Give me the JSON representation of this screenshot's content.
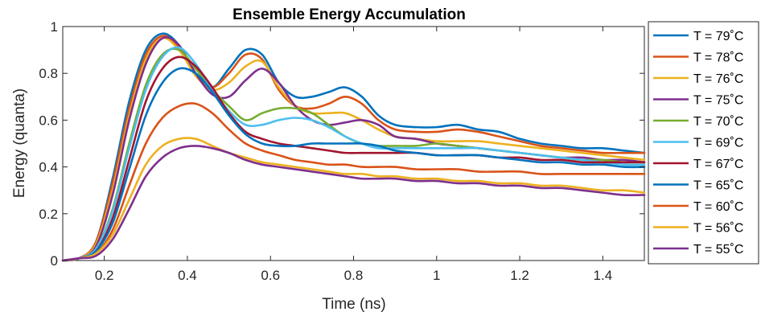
{
  "chart_data": {
    "type": "line",
    "title": "Ensemble Energy Accumulation",
    "xlabel": "Time (ns)",
    "ylabel": "Energy (quanta)",
    "xlim": [
      0.1,
      1.5
    ],
    "ylim": [
      0,
      1
    ],
    "xticks": [
      0.2,
      0.4,
      0.6,
      0.8,
      1,
      1.2,
      1.4
    ],
    "xtick_labels": [
      "0.2",
      "0.4",
      "0.6",
      "0.8",
      "1",
      "1.2",
      "1.4"
    ],
    "yticks": [
      0,
      0.2,
      0.4,
      0.6,
      0.8,
      1
    ],
    "ytick_labels": [
      "0",
      "0.2",
      "0.4",
      "0.6",
      "0.8",
      "1"
    ],
    "legend_placement": "outside-right",
    "grid": false,
    "series": [
      {
        "name": "T = 79˚C",
        "color": "#0072BD",
        "x": [
          0.1,
          0.14,
          0.18,
          0.22,
          0.26,
          0.3,
          0.34,
          0.38,
          0.42,
          0.46,
          0.5,
          0.54,
          0.58,
          0.62,
          0.66,
          0.7,
          0.74,
          0.78,
          0.82,
          0.86,
          0.9,
          0.95,
          1,
          1.05,
          1.1,
          1.15,
          1.2,
          1.25,
          1.3,
          1.35,
          1.4,
          1.45,
          1.5
        ],
        "y": [
          0,
          0.01,
          0.08,
          0.35,
          0.68,
          0.9,
          0.97,
          0.92,
          0.8,
          0.74,
          0.82,
          0.9,
          0.88,
          0.76,
          0.7,
          0.7,
          0.72,
          0.74,
          0.7,
          0.62,
          0.58,
          0.57,
          0.57,
          0.58,
          0.56,
          0.55,
          0.52,
          0.5,
          0.49,
          0.48,
          0.48,
          0.47,
          0.46
        ]
      },
      {
        "name": "T = 78˚C",
        "color": "#D95319",
        "x": [
          0.1,
          0.14,
          0.18,
          0.22,
          0.26,
          0.3,
          0.34,
          0.38,
          0.42,
          0.46,
          0.5,
          0.54,
          0.58,
          0.62,
          0.66,
          0.7,
          0.74,
          0.78,
          0.82,
          0.86,
          0.9,
          0.95,
          1,
          1.05,
          1.1,
          1.15,
          1.2,
          1.25,
          1.3,
          1.35,
          1.4,
          1.45,
          1.5
        ],
        "y": [
          0,
          0.01,
          0.08,
          0.33,
          0.65,
          0.88,
          0.96,
          0.91,
          0.79,
          0.74,
          0.8,
          0.88,
          0.86,
          0.73,
          0.66,
          0.65,
          0.67,
          0.7,
          0.67,
          0.6,
          0.56,
          0.55,
          0.55,
          0.56,
          0.55,
          0.53,
          0.51,
          0.49,
          0.48,
          0.47,
          0.46,
          0.46,
          0.46
        ]
      },
      {
        "name": "T = 76˚C",
        "color": "#EDB120",
        "x": [
          0.1,
          0.14,
          0.18,
          0.22,
          0.26,
          0.3,
          0.34,
          0.38,
          0.42,
          0.46,
          0.5,
          0.54,
          0.58,
          0.62,
          0.66,
          0.7,
          0.74,
          0.78,
          0.82,
          0.86,
          0.9,
          0.95,
          1,
          1.05,
          1.1,
          1.15,
          1.2,
          1.25,
          1.3,
          1.35,
          1.4,
          1.45,
          1.5
        ],
        "y": [
          0,
          0.01,
          0.07,
          0.3,
          0.62,
          0.86,
          0.95,
          0.9,
          0.79,
          0.73,
          0.76,
          0.83,
          0.85,
          0.74,
          0.66,
          0.63,
          0.63,
          0.63,
          0.6,
          0.56,
          0.53,
          0.52,
          0.51,
          0.51,
          0.51,
          0.5,
          0.49,
          0.48,
          0.47,
          0.46,
          0.45,
          0.44,
          0.43
        ]
      },
      {
        "name": "T = 75˚C",
        "color": "#7E2F8E",
        "x": [
          0.1,
          0.14,
          0.18,
          0.22,
          0.26,
          0.3,
          0.34,
          0.38,
          0.42,
          0.46,
          0.5,
          0.54,
          0.58,
          0.62,
          0.66,
          0.7,
          0.74,
          0.78,
          0.82,
          0.86,
          0.9,
          0.95,
          1,
          1.05,
          1.1,
          1.15,
          1.2,
          1.25,
          1.3,
          1.35,
          1.4,
          1.45,
          1.5
        ],
        "y": [
          0,
          0.01,
          0.06,
          0.28,
          0.6,
          0.84,
          0.95,
          0.92,
          0.8,
          0.71,
          0.7,
          0.77,
          0.82,
          0.76,
          0.66,
          0.6,
          0.58,
          0.59,
          0.6,
          0.58,
          0.53,
          0.52,
          0.5,
          0.49,
          0.48,
          0.47,
          0.46,
          0.45,
          0.44,
          0.44,
          0.43,
          0.43,
          0.42
        ]
      },
      {
        "name": "T = 70˚C",
        "color": "#77AC30",
        "x": [
          0.1,
          0.14,
          0.18,
          0.22,
          0.26,
          0.3,
          0.34,
          0.38,
          0.42,
          0.46,
          0.5,
          0.54,
          0.58,
          0.62,
          0.66,
          0.7,
          0.74,
          0.78,
          0.82,
          0.86,
          0.9,
          0.95,
          1,
          1.05,
          1.1,
          1.15,
          1.2,
          1.25,
          1.3,
          1.35,
          1.4,
          1.45,
          1.5
        ],
        "y": [
          0,
          0.01,
          0.05,
          0.22,
          0.5,
          0.75,
          0.88,
          0.9,
          0.82,
          0.73,
          0.66,
          0.6,
          0.63,
          0.65,
          0.65,
          0.63,
          0.58,
          0.53,
          0.5,
          0.49,
          0.49,
          0.49,
          0.5,
          0.49,
          0.48,
          0.47,
          0.46,
          0.45,
          0.44,
          0.43,
          0.43,
          0.42,
          0.42
        ]
      },
      {
        "name": "T = 69˚C",
        "color": "#4DBEEE",
        "x": [
          0.1,
          0.14,
          0.18,
          0.22,
          0.26,
          0.3,
          0.34,
          0.38,
          0.42,
          0.46,
          0.5,
          0.54,
          0.58,
          0.62,
          0.66,
          0.7,
          0.74,
          0.78,
          0.82,
          0.86,
          0.9,
          0.95,
          1,
          1.05,
          1.1,
          1.15,
          1.2,
          1.25,
          1.3,
          1.35,
          1.4,
          1.45,
          1.5
        ],
        "y": [
          0,
          0.01,
          0.05,
          0.21,
          0.48,
          0.73,
          0.87,
          0.91,
          0.84,
          0.73,
          0.64,
          0.58,
          0.58,
          0.6,
          0.61,
          0.6,
          0.57,
          0.53,
          0.5,
          0.48,
          0.48,
          0.48,
          0.48,
          0.48,
          0.48,
          0.47,
          0.46,
          0.45,
          0.44,
          0.43,
          0.42,
          0.41,
          0.41
        ]
      },
      {
        "name": "T = 67˚C",
        "color": "#A2142F",
        "x": [
          0.1,
          0.14,
          0.18,
          0.22,
          0.26,
          0.3,
          0.34,
          0.38,
          0.42,
          0.46,
          0.5,
          0.54,
          0.58,
          0.62,
          0.66,
          0.7,
          0.74,
          0.78,
          0.82,
          0.86,
          0.9,
          0.95,
          1,
          1.05,
          1.1,
          1.15,
          1.2,
          1.25,
          1.3,
          1.35,
          1.4,
          1.45,
          1.5
        ],
        "y": [
          0,
          0.01,
          0.04,
          0.18,
          0.43,
          0.68,
          0.82,
          0.87,
          0.83,
          0.74,
          0.63,
          0.55,
          0.52,
          0.5,
          0.49,
          0.48,
          0.47,
          0.46,
          0.46,
          0.46,
          0.46,
          0.46,
          0.45,
          0.45,
          0.45,
          0.44,
          0.44,
          0.43,
          0.43,
          0.42,
          0.42,
          0.42,
          0.42
        ]
      },
      {
        "name": "T = 65˚C",
        "color": "#0072BD",
        "x": [
          0.1,
          0.14,
          0.18,
          0.22,
          0.26,
          0.3,
          0.34,
          0.38,
          0.42,
          0.46,
          0.5,
          0.54,
          0.58,
          0.62,
          0.66,
          0.7,
          0.74,
          0.78,
          0.82,
          0.86,
          0.9,
          0.95,
          1,
          1.05,
          1.1,
          1.15,
          1.2,
          1.25,
          1.3,
          1.35,
          1.4,
          1.45,
          1.5
        ],
        "y": [
          0,
          0.01,
          0.04,
          0.16,
          0.39,
          0.62,
          0.76,
          0.82,
          0.8,
          0.72,
          0.62,
          0.54,
          0.5,
          0.49,
          0.49,
          0.5,
          0.5,
          0.5,
          0.5,
          0.49,
          0.47,
          0.46,
          0.45,
          0.45,
          0.45,
          0.44,
          0.43,
          0.42,
          0.42,
          0.41,
          0.41,
          0.4,
          0.4
        ]
      },
      {
        "name": "T = 60˚C",
        "color": "#D95319",
        "x": [
          0.1,
          0.14,
          0.18,
          0.22,
          0.26,
          0.3,
          0.34,
          0.38,
          0.42,
          0.46,
          0.5,
          0.54,
          0.58,
          0.62,
          0.66,
          0.7,
          0.74,
          0.78,
          0.82,
          0.86,
          0.9,
          0.95,
          1,
          1.05,
          1.1,
          1.15,
          1.2,
          1.25,
          1.3,
          1.35,
          1.4,
          1.45,
          1.5
        ],
        "y": [
          0,
          0.01,
          0.03,
          0.13,
          0.32,
          0.5,
          0.61,
          0.66,
          0.67,
          0.63,
          0.56,
          0.5,
          0.47,
          0.45,
          0.43,
          0.42,
          0.41,
          0.41,
          0.4,
          0.4,
          0.4,
          0.39,
          0.39,
          0.39,
          0.38,
          0.38,
          0.38,
          0.37,
          0.37,
          0.37,
          0.37,
          0.37,
          0.37
        ]
      },
      {
        "name": "T = 56˚C",
        "color": "#EDB120",
        "x": [
          0.1,
          0.14,
          0.18,
          0.22,
          0.26,
          0.3,
          0.34,
          0.38,
          0.42,
          0.46,
          0.5,
          0.54,
          0.58,
          0.62,
          0.66,
          0.7,
          0.74,
          0.78,
          0.82,
          0.86,
          0.9,
          0.95,
          1,
          1.05,
          1.1,
          1.15,
          1.2,
          1.25,
          1.3,
          1.35,
          1.4,
          1.45,
          1.5
        ],
        "y": [
          0,
          0.01,
          0.03,
          0.11,
          0.26,
          0.41,
          0.49,
          0.52,
          0.52,
          0.49,
          0.46,
          0.44,
          0.42,
          0.41,
          0.4,
          0.39,
          0.38,
          0.37,
          0.37,
          0.36,
          0.36,
          0.35,
          0.35,
          0.34,
          0.34,
          0.33,
          0.33,
          0.32,
          0.32,
          0.31,
          0.3,
          0.3,
          0.29
        ]
      },
      {
        "name": "T = 55˚C",
        "color": "#7E2F8E",
        "x": [
          0.1,
          0.14,
          0.18,
          0.22,
          0.26,
          0.3,
          0.34,
          0.38,
          0.42,
          0.46,
          0.5,
          0.54,
          0.58,
          0.62,
          0.66,
          0.7,
          0.74,
          0.78,
          0.82,
          0.86,
          0.9,
          0.95,
          1,
          1.05,
          1.1,
          1.15,
          1.2,
          1.25,
          1.3,
          1.35,
          1.4,
          1.45,
          1.5
        ],
        "y": [
          0,
          0.01,
          0.02,
          0.09,
          0.22,
          0.36,
          0.44,
          0.48,
          0.49,
          0.48,
          0.46,
          0.43,
          0.41,
          0.4,
          0.39,
          0.38,
          0.37,
          0.36,
          0.35,
          0.35,
          0.35,
          0.34,
          0.34,
          0.33,
          0.33,
          0.32,
          0.32,
          0.31,
          0.31,
          0.3,
          0.29,
          0.28,
          0.28
        ]
      }
    ]
  }
}
